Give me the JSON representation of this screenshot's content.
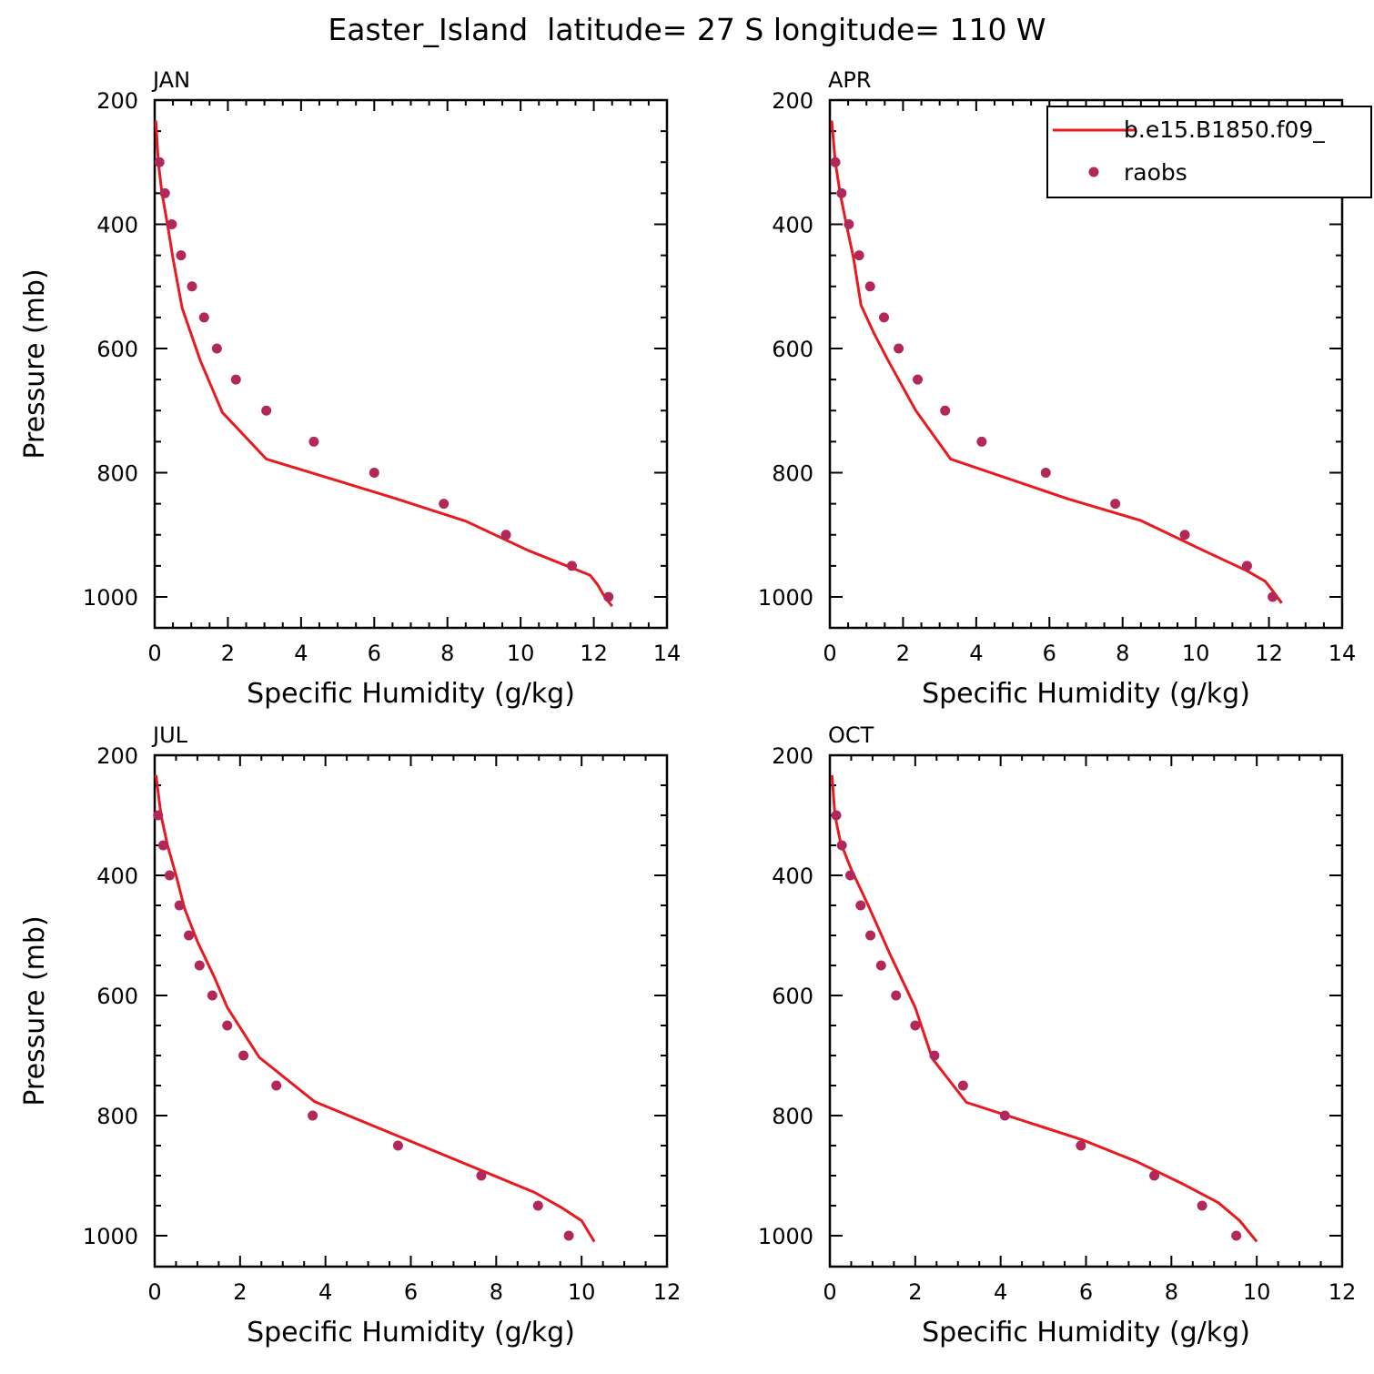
{
  "figure": {
    "title": "Easter_Island  latitude= 27 S longitude= 110 W"
  },
  "legend": {
    "location": "top-right of APR panel",
    "entries": [
      {
        "label": "b.e15.B1850.f09_",
        "kind": "line",
        "color": "#e8191f"
      },
      {
        "label": "raobs",
        "kind": "marker",
        "color": "#b3285a"
      }
    ]
  },
  "chart_data": [
    {
      "type": "line",
      "panel": "JAN",
      "xlabel": "Specific Humidity (g/kg)",
      "ylabel": "Pressure (mb)",
      "xlim": [
        0,
        14
      ],
      "ylim": [
        1025,
        200
      ],
      "y_inverted": true,
      "xticks": [
        0,
        2,
        4,
        6,
        8,
        10,
        12,
        14
      ],
      "yticks": [
        200,
        400,
        600,
        800,
        1000
      ],
      "series": [
        {
          "name": "b.e15.B1850.f09_",
          "kind": "line",
          "x": [
            0.03,
            0.1,
            0.2,
            0.35,
            0.5,
            0.75,
            1.25,
            1.85,
            3.05,
            6.5,
            8.5,
            10.2,
            11.9,
            12.1,
            12.3,
            12.5
          ],
          "y": [
            233,
            300,
            350,
            400,
            455,
            535,
            620,
            703,
            778,
            840,
            878,
            925,
            965,
            980,
            1000,
            1015
          ]
        },
        {
          "name": "raobs",
          "kind": "marker",
          "x": [
            0.13,
            0.28,
            0.47,
            0.72,
            1.02,
            1.35,
            1.7,
            2.22,
            3.05,
            4.35,
            6.0,
            7.9,
            9.6,
            11.4,
            12.4
          ],
          "y": [
            300,
            350,
            400,
            450,
            500,
            550,
            600,
            650,
            700,
            750,
            800,
            850,
            900,
            950,
            1000
          ]
        }
      ]
    },
    {
      "type": "line",
      "panel": "APR",
      "xlabel": "Specific Humidity (g/kg)",
      "ylabel": "",
      "xlim": [
        0,
        14
      ],
      "ylim": [
        1025,
        200
      ],
      "y_inverted": true,
      "xticks": [
        0,
        2,
        4,
        6,
        8,
        10,
        12,
        14
      ],
      "yticks": [
        200,
        400,
        600,
        800,
        1000
      ],
      "series": [
        {
          "name": "b.e15.B1850.f09_",
          "kind": "line",
          "x": [
            0.05,
            0.15,
            0.28,
            0.45,
            0.65,
            0.85,
            1.2,
            1.6,
            2.35,
            3.3,
            6.5,
            8.5,
            10.2,
            11.4,
            11.9,
            12.1,
            12.35
          ],
          "y": [
            233,
            300,
            350,
            400,
            455,
            530,
            575,
            620,
            700,
            778,
            842,
            877,
            925,
            958,
            975,
            990,
            1010
          ]
        },
        {
          "name": "raobs",
          "kind": "marker",
          "x": [
            0.15,
            0.32,
            0.52,
            0.8,
            1.1,
            1.48,
            1.88,
            2.4,
            3.15,
            4.15,
            5.9,
            7.8,
            9.7,
            11.4,
            12.1
          ],
          "y": [
            300,
            350,
            400,
            450,
            500,
            550,
            600,
            650,
            700,
            750,
            800,
            850,
            900,
            950,
            1000
          ]
        }
      ]
    },
    {
      "type": "line",
      "panel": "JUL",
      "xlabel": "Specific Humidity (g/kg)",
      "ylabel": "Pressure (mb)",
      "xlim": [
        0,
        12
      ],
      "ylim": [
        1025,
        200
      ],
      "y_inverted": true,
      "xticks": [
        0,
        2,
        4,
        6,
        8,
        10,
        12
      ],
      "yticks": [
        200,
        400,
        600,
        800,
        1000
      ],
      "series": [
        {
          "name": "b.e15.B1850.f09_",
          "kind": "line",
          "x": [
            0.03,
            0.15,
            0.3,
            0.5,
            0.7,
            1.0,
            1.4,
            1.7,
            2.45,
            3.75,
            7.2,
            8.9,
            9.5,
            10.0,
            10.3
          ],
          "y": [
            233,
            300,
            350,
            400,
            455,
            510,
            570,
            620,
            703,
            777,
            878,
            928,
            952,
            975,
            1010
          ]
        },
        {
          "name": "raobs",
          "kind": "marker",
          "x": [
            0.08,
            0.2,
            0.35,
            0.58,
            0.8,
            1.05,
            1.35,
            1.7,
            2.08,
            2.85,
            3.7,
            5.7,
            7.65,
            8.98,
            9.7
          ],
          "y": [
            300,
            350,
            400,
            450,
            500,
            550,
            600,
            650,
            700,
            750,
            800,
            850,
            900,
            950,
            1000
          ]
        }
      ]
    },
    {
      "type": "line",
      "panel": "OCT",
      "xlabel": "Specific Humidity (g/kg)",
      "ylabel": "",
      "xlim": [
        0,
        12
      ],
      "ylim": [
        1025,
        200
      ],
      "y_inverted": true,
      "xticks": [
        0,
        2,
        4,
        6,
        8,
        10,
        12
      ],
      "yticks": [
        200,
        400,
        600,
        800,
        1000
      ],
      "series": [
        {
          "name": "b.e15.B1850.f09_",
          "kind": "line",
          "x": [
            0.05,
            0.12,
            0.25,
            0.5,
            0.9,
            1.4,
            2.0,
            2.4,
            3.2,
            5.9,
            7.2,
            8.3,
            9.1,
            9.6,
            10.0
          ],
          "y": [
            233,
            300,
            345,
            390,
            450,
            530,
            620,
            705,
            778,
            840,
            877,
            915,
            945,
            975,
            1010
          ]
        },
        {
          "name": "raobs",
          "kind": "marker",
          "x": [
            0.15,
            0.28,
            0.48,
            0.72,
            0.95,
            1.2,
            1.55,
            2.0,
            2.45,
            3.12,
            4.1,
            5.88,
            7.6,
            8.72,
            9.52
          ],
          "y": [
            300,
            350,
            400,
            450,
            500,
            550,
            600,
            650,
            700,
            750,
            800,
            850,
            900,
            950,
            1000
          ]
        }
      ]
    }
  ]
}
